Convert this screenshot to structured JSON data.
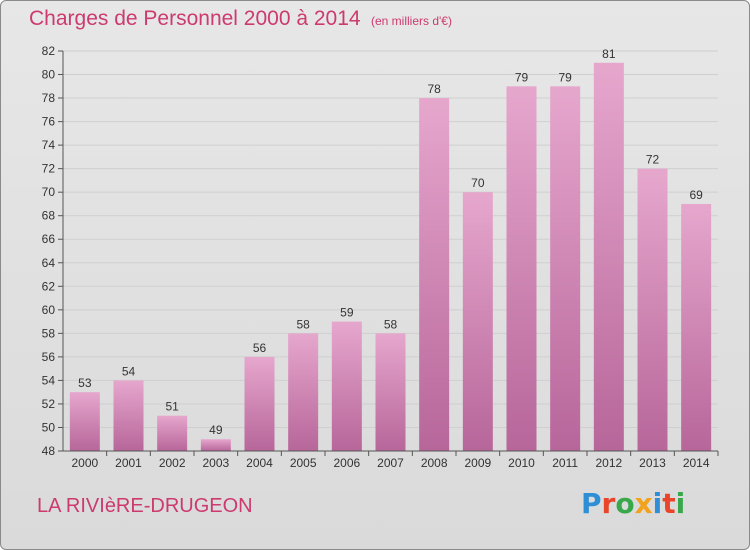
{
  "header": {
    "title": "Charges de Personnel 2000 à 2014",
    "subtitle": "(en milliers d'€)"
  },
  "footer": {
    "place": "LA RIVIèRE-DRUGEON",
    "logo_text": "Proxiti",
    "logo_letter_colors": [
      "#2f8fd6",
      "#e8452a",
      "#39a84a",
      "#f2a21c",
      "#2f8fd6",
      "#e8452a",
      "#39a84a"
    ]
  },
  "colors": {
    "bar_top": "#e6a7cd",
    "bar_bottom": "#b7669a",
    "axis_text": "#333333",
    "grid": "#cfcfcf",
    "title": "#cc3a6e"
  },
  "chart_data": {
    "type": "bar",
    "title": "Charges de Personnel 2000 à 2014",
    "subtitle": "(en milliers d'€)",
    "xlabel": "",
    "ylabel": "",
    "categories": [
      "2000",
      "2001",
      "2002",
      "2003",
      "2004",
      "2005",
      "2006",
      "2007",
      "2008",
      "2009",
      "2010",
      "2011",
      "2012",
      "2013",
      "2014"
    ],
    "values": [
      53,
      54,
      51,
      49,
      56,
      58,
      59,
      58,
      78,
      70,
      79,
      79,
      81,
      72,
      69
    ],
    "ylim": [
      48,
      82
    ],
    "yticks": [
      48,
      50,
      52,
      54,
      56,
      58,
      60,
      62,
      64,
      66,
      68,
      70,
      72,
      74,
      76,
      78,
      80,
      82
    ],
    "grid": true,
    "data_labels": true
  }
}
